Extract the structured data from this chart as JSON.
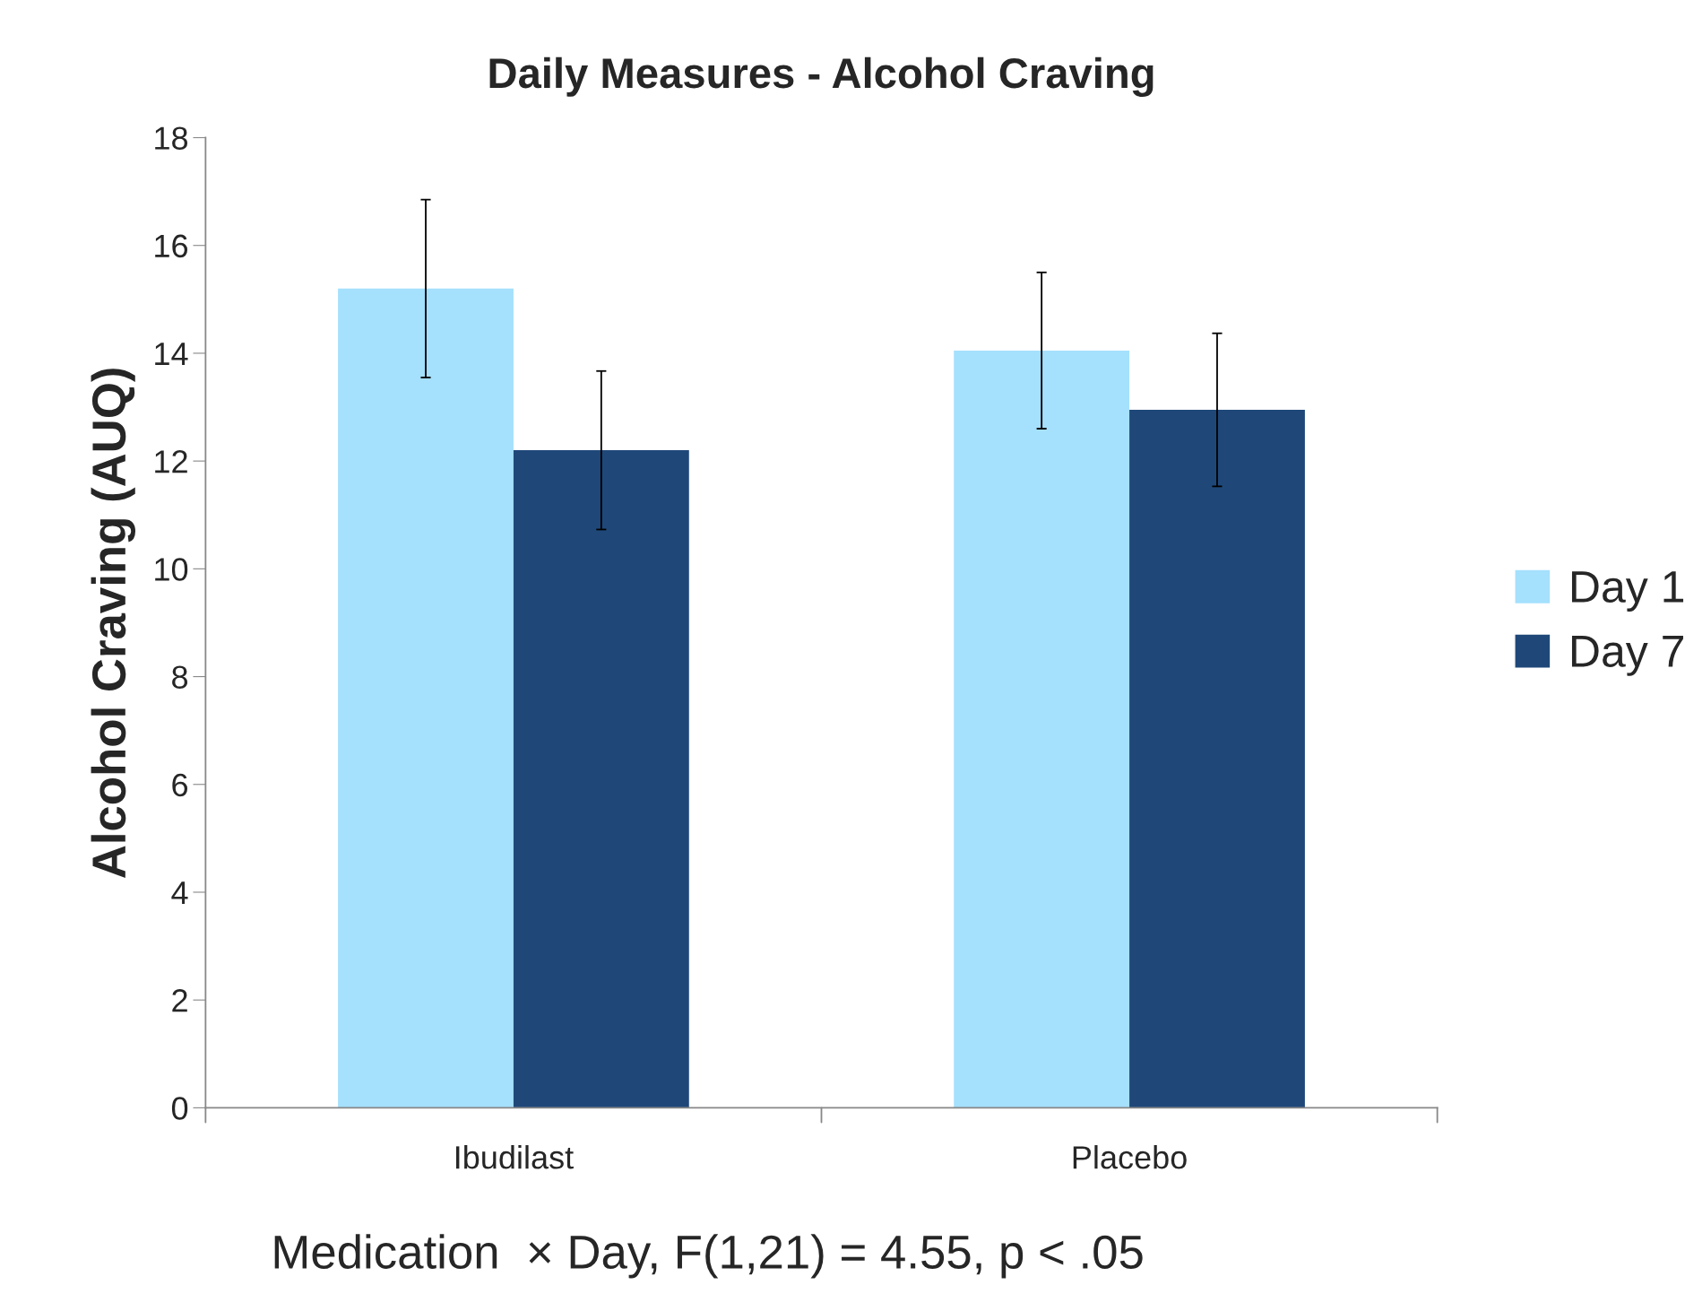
{
  "chart_data": {
    "type": "bar",
    "title": "Daily Measures - Alcohol Craving",
    "ylabel": "Alcohol Craving (AUQ)",
    "categories": [
      "Ibudilast",
      "Placebo"
    ],
    "series": [
      {
        "name": "Day 1",
        "color": "#a5e0fd",
        "values": [
          15.2,
          14.05
        ],
        "errors": [
          1.65,
          1.45
        ]
      },
      {
        "name": "Day 7",
        "color": "#1f4879",
        "values": [
          12.2,
          12.95
        ],
        "errors": [
          1.47,
          1.42
        ]
      }
    ],
    "ylim": [
      0,
      18
    ],
    "yticks": [
      0,
      2,
      4,
      6,
      8,
      10,
      12,
      14,
      16,
      18
    ],
    "grid": false,
    "legend": "right",
    "annotations": [
      "Medication  × Day, F(1,21) = 4.55, p < .05"
    ]
  }
}
